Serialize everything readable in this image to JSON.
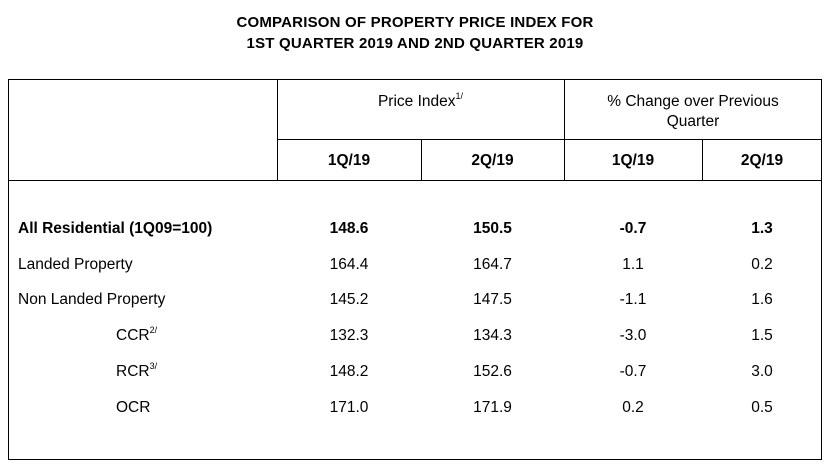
{
  "title": {
    "line1": "COMPARISON OF PROPERTY PRICE INDEX FOR",
    "line2": "1ST QUARTER 2019 AND 2ND QUARTER 2019"
  },
  "header": {
    "price_index": "Price Index",
    "price_index_note": "1/",
    "pct_change_line1": "% Change over Previous",
    "pct_change_line2": "Quarter",
    "sub_columns": [
      "1Q/19",
      "2Q/19",
      "1Q/19",
      "2Q/19"
    ]
  },
  "rows": [
    {
      "label": "All Residential (1Q09=100)",
      "note": "",
      "values": [
        "148.6",
        "150.5",
        "-0.7",
        "1.3"
      ]
    },
    {
      "label": "Landed Property",
      "note": "",
      "values": [
        "164.4",
        "164.7",
        "1.1",
        "0.2"
      ]
    },
    {
      "label": "Non Landed Property",
      "note": "",
      "values": [
        "145.2",
        "147.5",
        "-1.1",
        "1.6"
      ]
    },
    {
      "label": "CCR",
      "note": "2/",
      "values": [
        "132.3",
        "134.3",
        "-3.0",
        "1.5"
      ]
    },
    {
      "label": "RCR",
      "note": "3/",
      "values": [
        "148.2",
        "152.6",
        "-0.7",
        "3.0"
      ]
    },
    {
      "label": "OCR",
      "note": "",
      "values": [
        "171.0",
        "171.9",
        "0.2",
        "0.5"
      ]
    }
  ]
}
